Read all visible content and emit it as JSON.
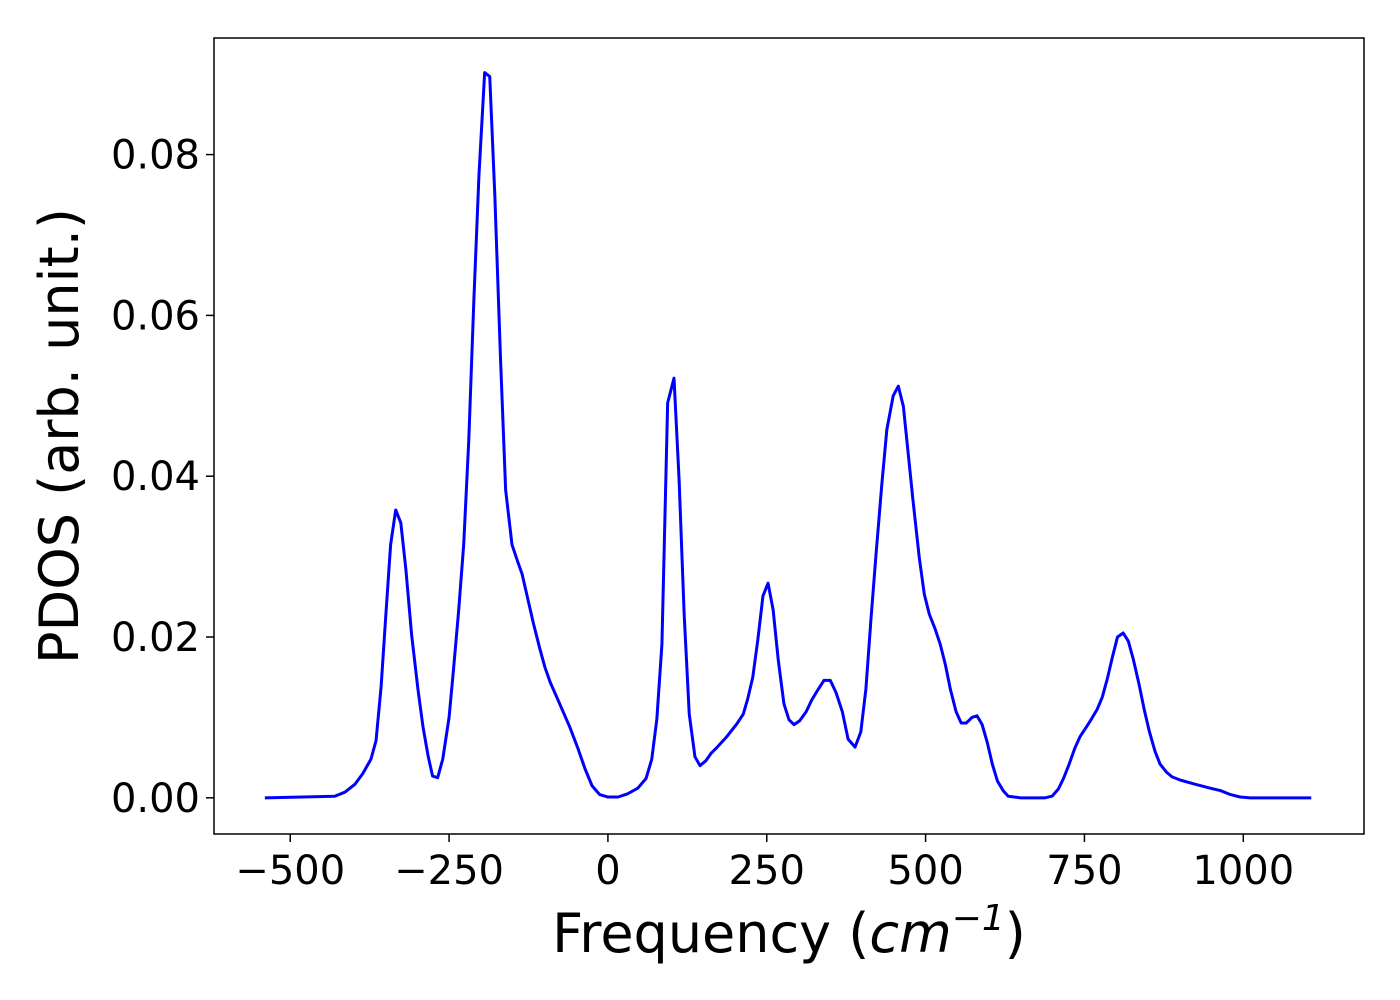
{
  "chart_data": {
    "type": "line",
    "xlabel": {
      "text": "Frequency (",
      "unit": "cm",
      "exponent": "−1",
      "close": ")"
    },
    "ylabel": "PDOS (arb. unit.)",
    "xlim": [
      -620,
      1190
    ],
    "ylim": [
      -0.0045,
      0.0945
    ],
    "xticks": [
      {
        "value": -500,
        "label": "−500"
      },
      {
        "value": -250,
        "label": "−250"
      },
      0,
      250,
      500,
      750,
      1000
    ],
    "yticks": [
      {
        "value": 0,
        "label": "0.00"
      },
      0.02,
      0.04,
      0.06,
      0.08
    ],
    "color": "#0000ff",
    "x": [
      -540,
      -430,
      -414,
      -398,
      -386,
      -373,
      -365,
      -357,
      -350,
      -342,
      -334,
      -326,
      -318,
      -309,
      -299,
      -291,
      -283,
      -276,
      -268,
      -260,
      -250,
      -243,
      -235,
      -227,
      -219,
      -211,
      -203,
      -194,
      -186,
      -178,
      -169,
      -161,
      -151,
      -143,
      -135,
      -126,
      -117,
      -107,
      -99,
      -91,
      -76,
      -60,
      -47,
      -36,
      -25,
      -13,
      0,
      16,
      31,
      47,
      60,
      69,
      77,
      85,
      94,
      104,
      112,
      120,
      128,
      137,
      145,
      154,
      162,
      172,
      187,
      203,
      213,
      220,
      228,
      236,
      244,
      252,
      260,
      268,
      277,
      285,
      293,
      302,
      312,
      321,
      331,
      340,
      350,
      359,
      369,
      378,
      389,
      398,
      406,
      414,
      422,
      431,
      439,
      449,
      457,
      465,
      472,
      480,
      490,
      498,
      506,
      515,
      523,
      531,
      539,
      548,
      556,
      564,
      573,
      581,
      589,
      597,
      605,
      613,
      622,
      630,
      649,
      688,
      699,
      709,
      717,
      726,
      735,
      743,
      753,
      761,
      770,
      778,
      786,
      794,
      802,
      811,
      819,
      827,
      836,
      844,
      852,
      861,
      869,
      879,
      888,
      901,
      924,
      948,
      964,
      980,
      995,
      1011,
      1107
    ],
    "values": [
      0,
      0.0002,
      0.0007,
      0.0017,
      0.003,
      0.0048,
      0.0071,
      0.0138,
      0.0222,
      0.0315,
      0.0358,
      0.0342,
      0.0284,
      0.0203,
      0.0135,
      0.0088,
      0.0052,
      0.0027,
      0.0025,
      0.0048,
      0.01,
      0.016,
      0.0232,
      0.0315,
      0.0445,
      0.0619,
      0.0774,
      0.0902,
      0.0897,
      0.0749,
      0.0545,
      0.0383,
      0.0315,
      0.0296,
      0.0278,
      0.0247,
      0.0216,
      0.0185,
      0.0162,
      0.0144,
      0.0117,
      0.0088,
      0.0061,
      0.0036,
      0.0015,
      0.0004,
      0.0001,
      0.0001,
      0.0005,
      0.0012,
      0.0024,
      0.0048,
      0.0098,
      0.0191,
      0.0491,
      0.0522,
      0.0396,
      0.0228,
      0.0104,
      0.0051,
      0.004,
      0.0046,
      0.0055,
      0.0063,
      0.0076,
      0.0092,
      0.0104,
      0.0123,
      0.015,
      0.0197,
      0.0251,
      0.0267,
      0.0234,
      0.0172,
      0.0117,
      0.0097,
      0.0091,
      0.0096,
      0.0107,
      0.0122,
      0.0135,
      0.0146,
      0.0146,
      0.0131,
      0.0107,
      0.0073,
      0.0063,
      0.0082,
      0.0135,
      0.0222,
      0.0303,
      0.0389,
      0.0458,
      0.05,
      0.0512,
      0.0487,
      0.0433,
      0.0371,
      0.0299,
      0.0253,
      0.0228,
      0.021,
      0.0191,
      0.0166,
      0.0135,
      0.0107,
      0.0093,
      0.0093,
      0.01,
      0.0102,
      0.0091,
      0.0069,
      0.0042,
      0.0021,
      0.0009,
      0.0002,
      0,
      0,
      0.0002,
      0.0011,
      0.0024,
      0.0042,
      0.0062,
      0.0076,
      0.0088,
      0.0098,
      0.011,
      0.0125,
      0.0148,
      0.0175,
      0.02,
      0.0205,
      0.0195,
      0.0172,
      0.0141,
      0.011,
      0.0083,
      0.0058,
      0.0042,
      0.0032,
      0.0026,
      0.0022,
      0.0017,
      0.0012,
      0.0009,
      0.0004,
      0.0001,
      0,
      0
    ]
  }
}
